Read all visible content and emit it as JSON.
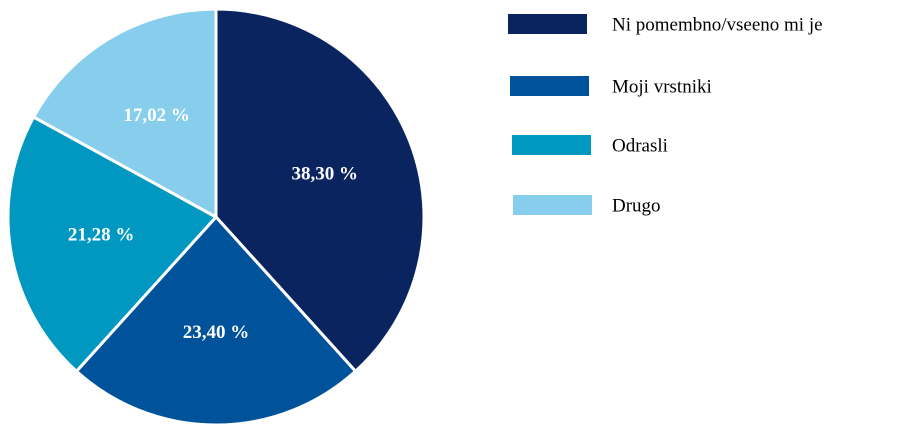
{
  "chart_data": {
    "type": "pie",
    "categories": [
      "Ni pomembno/vseeno mi je",
      "Moji vrstniki",
      "Odrasli",
      "Drugo"
    ],
    "values": [
      38.3,
      23.4,
      21.28,
      17.02
    ],
    "value_labels": [
      "38,30 %",
      "23,40 %",
      "21,28 %",
      "17,02 %"
    ],
    "colors": [
      "#0a2460",
      "#00529a",
      "#0097c1",
      "#87ceec"
    ],
    "legend": "right"
  }
}
